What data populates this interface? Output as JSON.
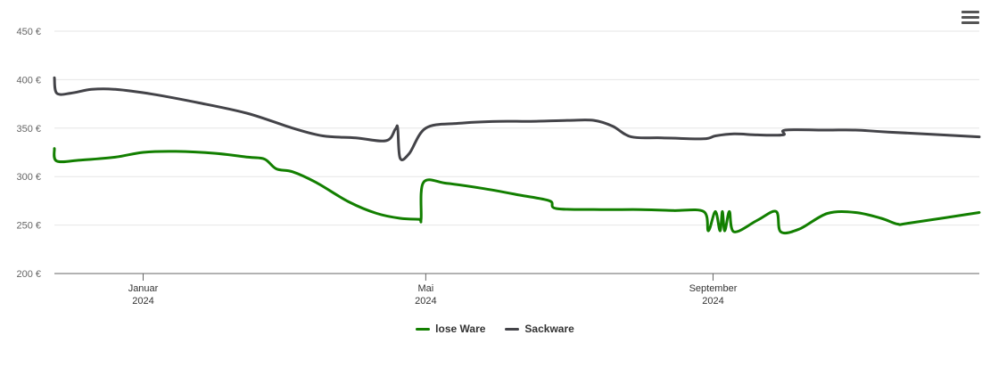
{
  "chart_data": {
    "type": "line",
    "currency_suffix": " €",
    "y_ticks": [
      200,
      250,
      300,
      350,
      400,
      450
    ],
    "ylim": [
      200,
      450
    ],
    "x_ticks": [
      {
        "date": "2024-01-01",
        "label": "Januar",
        "year": "2024"
      },
      {
        "date": "2024-05-01",
        "label": "Mai",
        "year": "2024"
      },
      {
        "date": "2024-09-01",
        "label": "September",
        "year": "2024"
      }
    ],
    "xlim": [
      "2023-11-24",
      "2024-12-24"
    ],
    "series": [
      {
        "name": "lose Ware",
        "color": "#127f00",
        "points": [
          [
            "2023-11-24",
            329
          ],
          [
            "2023-11-25",
            316
          ],
          [
            "2023-12-05",
            317
          ],
          [
            "2023-12-20",
            320
          ],
          [
            "2024-01-01",
            325
          ],
          [
            "2024-01-15",
            326
          ],
          [
            "2024-02-01",
            324
          ],
          [
            "2024-02-15",
            320
          ],
          [
            "2024-02-22",
            318
          ],
          [
            "2024-02-27",
            308
          ],
          [
            "2024-03-05",
            305
          ],
          [
            "2024-03-15",
            294
          ],
          [
            "2024-03-29",
            274
          ],
          [
            "2024-04-10",
            262
          ],
          [
            "2024-04-20",
            257
          ],
          [
            "2024-04-28",
            256
          ],
          [
            "2024-04-29",
            256
          ],
          [
            "2024-04-30",
            294
          ],
          [
            "2024-05-10",
            293
          ],
          [
            "2024-05-25",
            288
          ],
          [
            "2024-06-10",
            281
          ],
          [
            "2024-06-23",
            275
          ],
          [
            "2024-06-26",
            267
          ],
          [
            "2024-07-15",
            266
          ],
          [
            "2024-08-01",
            266
          ],
          [
            "2024-08-15",
            265
          ],
          [
            "2024-08-28",
            264
          ],
          [
            "2024-08-30",
            244
          ],
          [
            "2024-09-02",
            264
          ],
          [
            "2024-09-04",
            244
          ],
          [
            "2024-09-05",
            264
          ],
          [
            "2024-09-06",
            244
          ],
          [
            "2024-09-08",
            264
          ],
          [
            "2024-09-10",
            243
          ],
          [
            "2024-09-20",
            255
          ],
          [
            "2024-09-28",
            264
          ],
          [
            "2024-09-30",
            243
          ],
          [
            "2024-10-08",
            246
          ],
          [
            "2024-10-20",
            262
          ],
          [
            "2024-11-01",
            263
          ],
          [
            "2024-11-12",
            257
          ],
          [
            "2024-11-19",
            251
          ],
          [
            "2024-11-24",
            252
          ],
          [
            "2024-12-24",
            263
          ]
        ]
      },
      {
        "name": "Sackware",
        "color": "#434348",
        "points": [
          [
            "2023-11-24",
            402
          ],
          [
            "2023-11-25",
            386
          ],
          [
            "2023-12-01",
            386
          ],
          [
            "2023-12-10",
            390
          ],
          [
            "2023-12-20",
            390
          ],
          [
            "2024-01-05",
            385
          ],
          [
            "2024-01-25",
            376
          ],
          [
            "2024-02-15",
            365
          ],
          [
            "2024-03-05",
            350
          ],
          [
            "2024-03-18",
            342
          ],
          [
            "2024-04-01",
            340
          ],
          [
            "2024-04-14",
            337
          ],
          [
            "2024-04-18",
            349
          ],
          [
            "2024-04-19",
            350
          ],
          [
            "2024-04-20",
            319
          ],
          [
            "2024-04-24",
            324
          ],
          [
            "2024-05-01",
            350
          ],
          [
            "2024-05-15",
            355
          ],
          [
            "2024-06-01",
            357
          ],
          [
            "2024-06-15",
            357
          ],
          [
            "2024-07-01",
            358
          ],
          [
            "2024-07-12",
            358
          ],
          [
            "2024-07-20",
            352
          ],
          [
            "2024-07-28",
            341
          ],
          [
            "2024-08-10",
            340
          ],
          [
            "2024-08-28",
            339
          ],
          [
            "2024-09-02",
            342
          ],
          [
            "2024-09-10",
            344
          ],
          [
            "2024-09-20",
            343
          ],
          [
            "2024-10-01",
            343
          ],
          [
            "2024-10-02",
            348
          ],
          [
            "2024-10-20",
            348
          ],
          [
            "2024-11-01",
            348
          ],
          [
            "2024-11-15",
            346
          ],
          [
            "2024-12-24",
            341
          ]
        ]
      }
    ],
    "legend": "bottom-center",
    "grid": true
  },
  "menu_icon": "hamburger-menu-icon"
}
